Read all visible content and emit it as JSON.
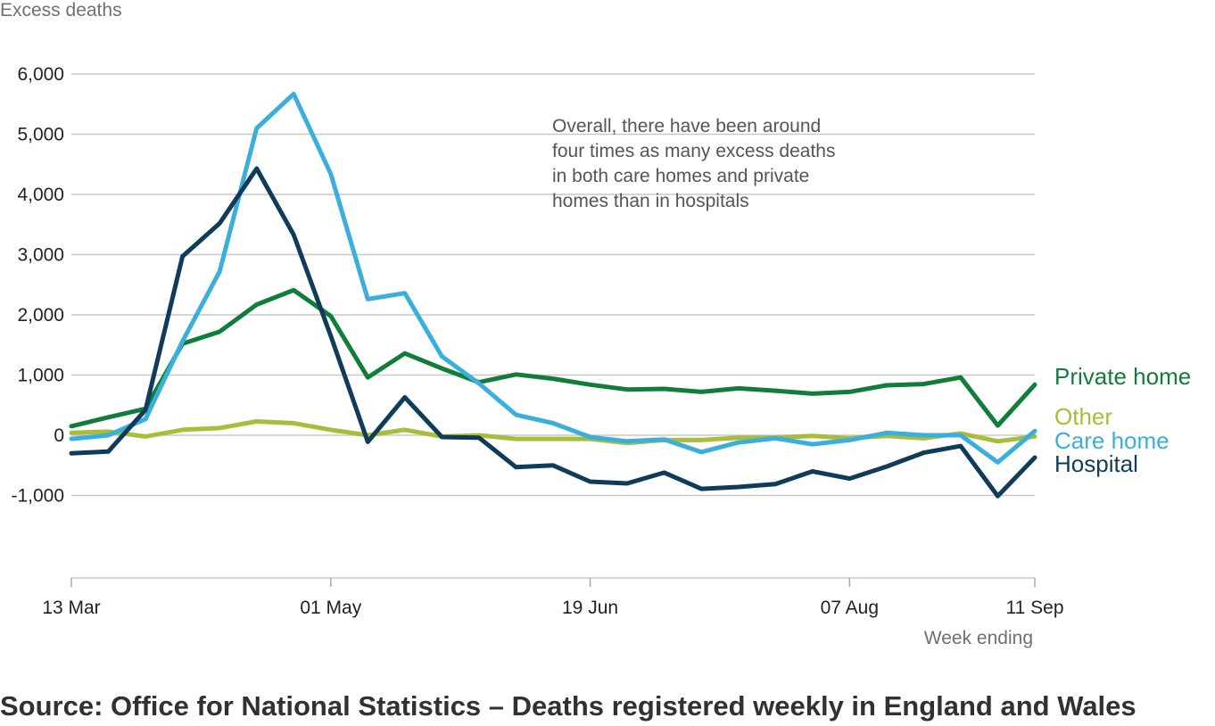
{
  "chart_data": {
    "type": "line",
    "ylabel": "Excess deaths",
    "xlabel": "Week ending",
    "ylim": [
      -1000,
      6000
    ],
    "yticks": [
      -1000,
      0,
      1000,
      2000,
      3000,
      4000,
      5000,
      6000
    ],
    "ytick_labels": [
      "-1,000",
      "0",
      "1,000",
      "2,000",
      "3,000",
      "4,000",
      "5,000",
      "6,000"
    ],
    "grid": "horizontal",
    "x": [
      "13 Mar",
      "20 Mar",
      "27 Mar",
      "03 Apr",
      "10 Apr",
      "17 Apr",
      "24 Apr",
      "01 May",
      "08 May",
      "15 May",
      "22 May",
      "29 May",
      "05 Jun",
      "12 Jun",
      "19 Jun",
      "26 Jun",
      "03 Jul",
      "10 Jul",
      "17 Jul",
      "24 Jul",
      "31 Jul",
      "07 Aug",
      "14 Aug",
      "21 Aug",
      "28 Aug",
      "04 Sep",
      "11 Sep"
    ],
    "xtick_labels": [
      "13 Mar",
      "01 May",
      "19 Jun",
      "07 Aug",
      "11 Sep"
    ],
    "annotation": [
      "Overall, there have been around",
      "four times as many excess deaths",
      "in both care homes and private",
      "homes than in hospitals"
    ],
    "series": [
      {
        "name": "Private home",
        "color": "#117d3a",
        "values": [
          150,
          300,
          440,
          1520,
          1720,
          2170,
          2410,
          1980,
          960,
          1360,
          1110,
          880,
          1010,
          940,
          840,
          760,
          770,
          720,
          780,
          740,
          690,
          720,
          830,
          850,
          960,
          160,
          840
        ]
      },
      {
        "name": "Other",
        "color": "#a8bd3a",
        "values": [
          40,
          60,
          -20,
          90,
          120,
          230,
          200,
          90,
          0,
          90,
          -20,
          0,
          -60,
          -60,
          -60,
          -130,
          -80,
          -80,
          -40,
          -40,
          -10,
          -50,
          -10,
          -50,
          30,
          -100,
          -20
        ]
      },
      {
        "name": "Care home",
        "color": "#3aaedc",
        "values": [
          -60,
          0,
          270,
          1560,
          2720,
          5100,
          5670,
          4340,
          2260,
          2360,
          1310,
          860,
          340,
          200,
          -30,
          -100,
          -70,
          -280,
          -120,
          -50,
          -150,
          -80,
          40,
          0,
          0,
          -450,
          70
        ]
      },
      {
        "name": "Hospital",
        "color": "#0e3c5a",
        "values": [
          -300,
          -270,
          420,
          2970,
          3520,
          4430,
          3330,
          1650,
          -110,
          630,
          -30,
          -40,
          -530,
          -500,
          -770,
          -800,
          -620,
          -890,
          -860,
          -810,
          -600,
          -720,
          -520,
          -290,
          -180,
          -1010,
          -370
        ]
      }
    ]
  },
  "source_text": "Source: Office for National Statistics – Deaths registered weekly in England and Wales"
}
